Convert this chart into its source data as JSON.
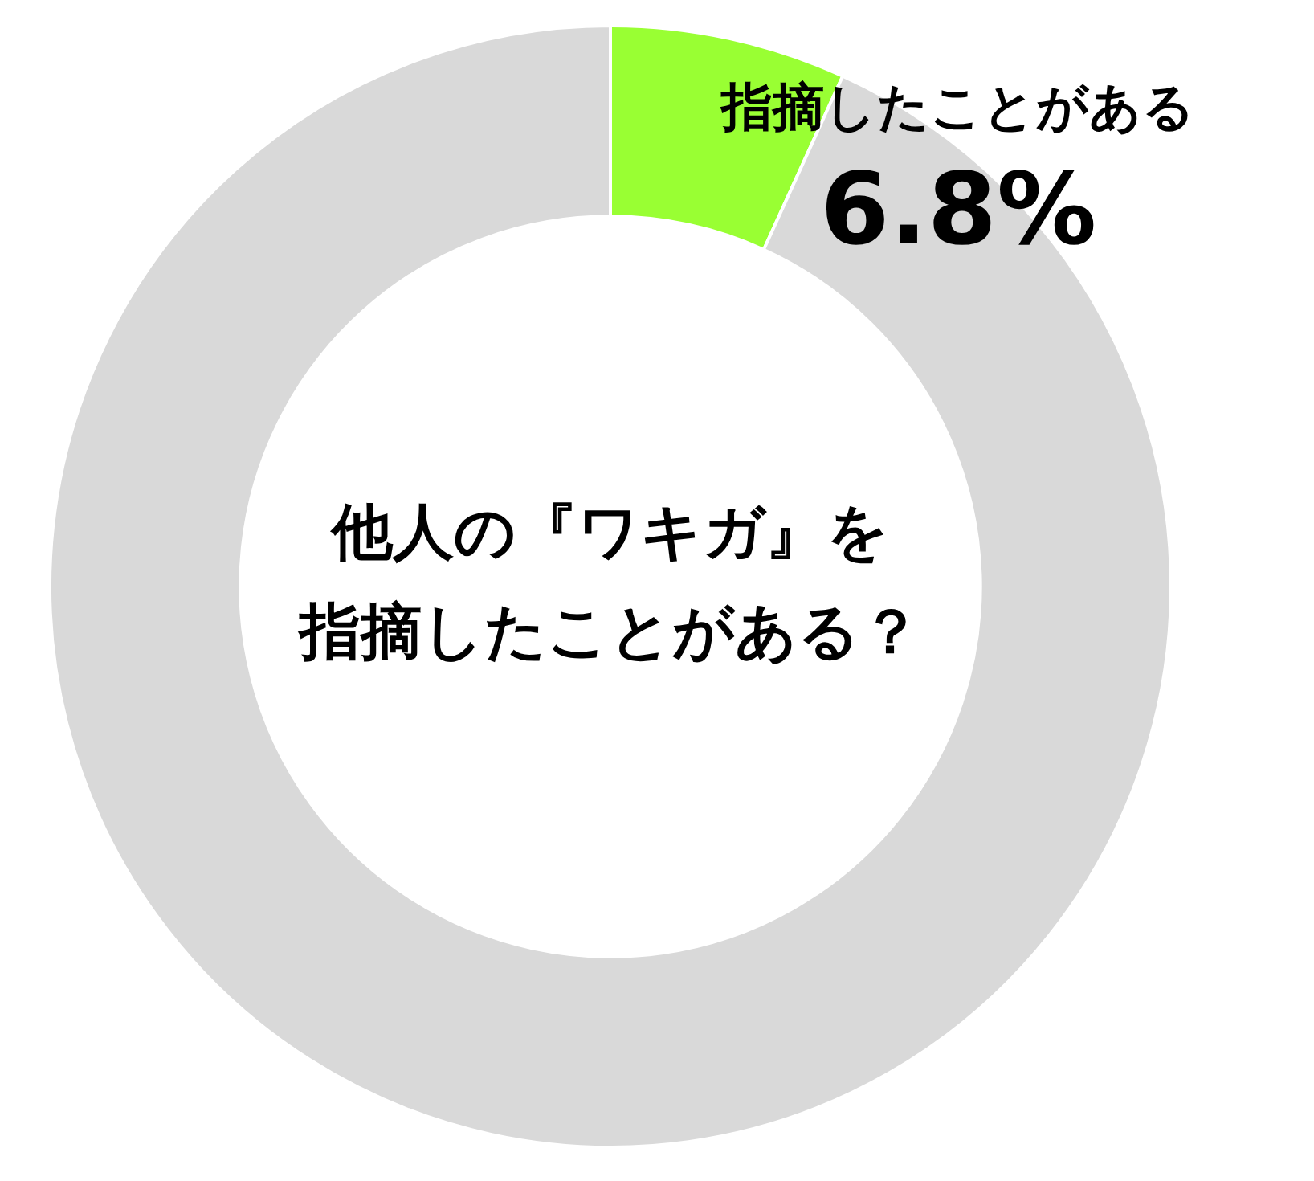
{
  "chart_data": {
    "type": "donut",
    "title": "他人の『ワキガ』を指摘したことがある？",
    "categories": [
      "指摘したことがある",
      null
    ],
    "values": [
      6.8,
      93.2
    ],
    "colors": [
      "#99ff33",
      "#d9d9d9"
    ],
    "value_labels": [
      "6.8%",
      null
    ],
    "legend": false
  }
}
